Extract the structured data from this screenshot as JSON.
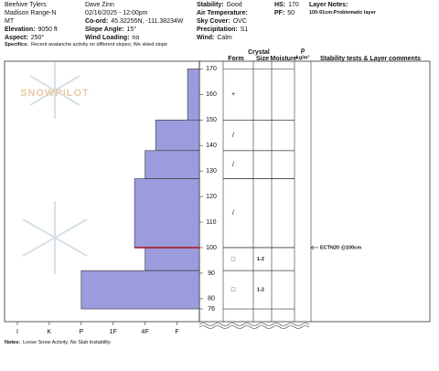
{
  "header": {
    "columns": [
      [
        {
          "value": "Beehive Tylers"
        },
        {
          "value": "Madison Range-N"
        },
        {
          "value": "MT"
        },
        {
          "label": "Elevation:",
          "value": "9050 ft"
        },
        {
          "label": "Aspect:",
          "value": "250°"
        }
      ],
      [
        {
          "value": "Dave Zinn"
        },
        {
          "value": "02/16/2025 - 12:00pm"
        },
        {
          "label": "Co-ord:",
          "value": "45.32255N, -111.38234W"
        },
        {
          "label": "Slope Angle:",
          "value": "15°"
        },
        {
          "label": "Wind Loading:",
          "value": "no"
        }
      ],
      [
        {
          "label": "Stability:",
          "value": "Good"
        },
        {
          "label": "Air Temperature:"
        },
        {
          "label": "Sky Cover:",
          "value": "OVC"
        },
        {
          "label": "Precipitation:",
          "value": "S1"
        },
        {
          "label": "Wind:",
          "value": "Calm"
        }
      ],
      [
        {
          "label": "HS:",
          "value": "170"
        },
        {
          "label": "PF:",
          "value": "50"
        }
      ],
      [
        {
          "label": "Layer Notes:"
        },
        {
          "value": "100-91cm:Problematic layer"
        }
      ]
    ],
    "specifics": {
      "label": "Specifics:",
      "value": "Recent avalanche activity on different slopes; We skied slope"
    }
  },
  "logo": "SNOWPILOT",
  "chart_data": {
    "type": "snow_profile",
    "ylim": [
      71,
      173
    ],
    "yticks": [
      76,
      80,
      90,
      100,
      110,
      120,
      130,
      140,
      150,
      160,
      170
    ],
    "xlim": [
      6.4,
      0.3
    ],
    "xticks": [
      {
        "value": 6,
        "label": "I"
      },
      {
        "value": 5,
        "label": "K"
      },
      {
        "value": 4,
        "label": "P"
      },
      {
        "value": 3,
        "label": "1F"
      },
      {
        "value": 2,
        "label": "4F"
      },
      {
        "value": 1,
        "label": "F"
      }
    ],
    "color": "#9b9bde",
    "layers": [
      {
        "top": 170,
        "bottom": 150,
        "hardness": 0.67,
        "form": "+"
      },
      {
        "top": 150,
        "bottom": 138,
        "hardness": 1.67,
        "form": "/"
      },
      {
        "top": 138,
        "bottom": 127,
        "hardness": 2,
        "form": "/"
      },
      {
        "top": 127,
        "bottom": 100,
        "hardness": 2.33,
        "form": "/"
      },
      {
        "top": 100,
        "bottom": 91,
        "hardness": 2,
        "form": "□",
        "size": "1-2"
      },
      {
        "top": 91,
        "bottom": 76,
        "hardness": 4,
        "form": "□",
        "size": "1-2"
      }
    ],
    "weak_layer": {
      "depth": 100,
      "label": "ECTN20 @100cm",
      "color": "#b01010"
    },
    "crystal_header": "Crystal",
    "columns": [
      "Form",
      "Size",
      "Moisture"
    ],
    "density_header": "ρ",
    "density_unit": "kg/m³",
    "comments_header": "Stability tests & Layer comments"
  },
  "notes": {
    "label": "Notes:",
    "value": "Loose Snow Activity, No Slab Instability"
  }
}
